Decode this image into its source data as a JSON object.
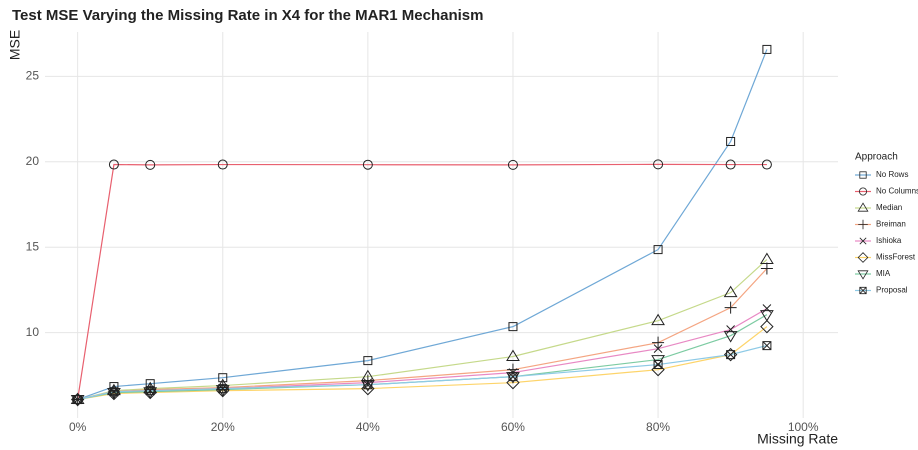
{
  "chart_data": {
    "type": "line",
    "title": "Test MSE Varying the Missing Rate in X4 for the MAR1 Mechanism",
    "x_label": "Missing Rate",
    "y_label": "MSE",
    "legend_title": "Approach",
    "legend": "right",
    "x": [
      0,
      5,
      10,
      20,
      40,
      60,
      80,
      90,
      95
    ],
    "xlim": [
      -4.5,
      104.8
    ],
    "xticks": [
      {
        "value": 0,
        "label": "0%"
      },
      {
        "value": 20,
        "label": "20%"
      },
      {
        "value": 40,
        "label": "40%"
      },
      {
        "value": 60,
        "label": "60%"
      },
      {
        "value": 80,
        "label": "80%"
      },
      {
        "value": 100,
        "label": "100%"
      }
    ],
    "ylim": [
      5.0,
      27.6
    ],
    "yticks": [
      10,
      15,
      20,
      25
    ],
    "grid": true,
    "series": [
      {
        "name": "No Rows",
        "color": "#6fa8d6",
        "marker": "square",
        "values": [
          6.08,
          6.84,
          7.01,
          7.36,
          8.36,
          10.35,
          14.86,
          21.19,
          26.58
        ]
      },
      {
        "name": "No Columns",
        "color": "#e8606f",
        "marker": "circle",
        "values": [
          6.08,
          19.84,
          19.82,
          19.84,
          19.83,
          19.82,
          19.85,
          19.84,
          19.84
        ]
      },
      {
        "name": "Median",
        "color": "#c5d98a",
        "marker": "triangle",
        "values": [
          6.08,
          6.6,
          6.72,
          6.9,
          7.42,
          8.6,
          10.7,
          12.34,
          14.28
        ]
      },
      {
        "name": "Breiman",
        "color": "#f4a582",
        "marker": "plus",
        "values": [
          6.08,
          6.54,
          6.66,
          6.78,
          7.19,
          7.83,
          9.41,
          11.46,
          13.75
        ]
      },
      {
        "name": "Ishioka",
        "color": "#e889c4",
        "marker": "cross",
        "values": [
          6.08,
          6.54,
          6.6,
          6.72,
          7.07,
          7.66,
          9.06,
          10.18,
          11.41
        ]
      },
      {
        "name": "MissForest",
        "color": "#fdd46a",
        "marker": "diamond",
        "values": [
          6.08,
          6.43,
          6.49,
          6.6,
          6.72,
          7.07,
          7.83,
          8.71,
          10.35
        ]
      },
      {
        "name": "MIA",
        "color": "#7ccba2",
        "marker": "triangle-down",
        "values": [
          6.08,
          6.49,
          6.54,
          6.66,
          6.95,
          7.42,
          8.42,
          9.82,
          11.05
        ]
      },
      {
        "name": "Proposal",
        "color": "#8ecae6",
        "marker": "square-cross",
        "values": [
          6.08,
          6.54,
          6.6,
          6.72,
          6.95,
          7.42,
          8.13,
          8.71,
          9.24
        ]
      }
    ]
  }
}
